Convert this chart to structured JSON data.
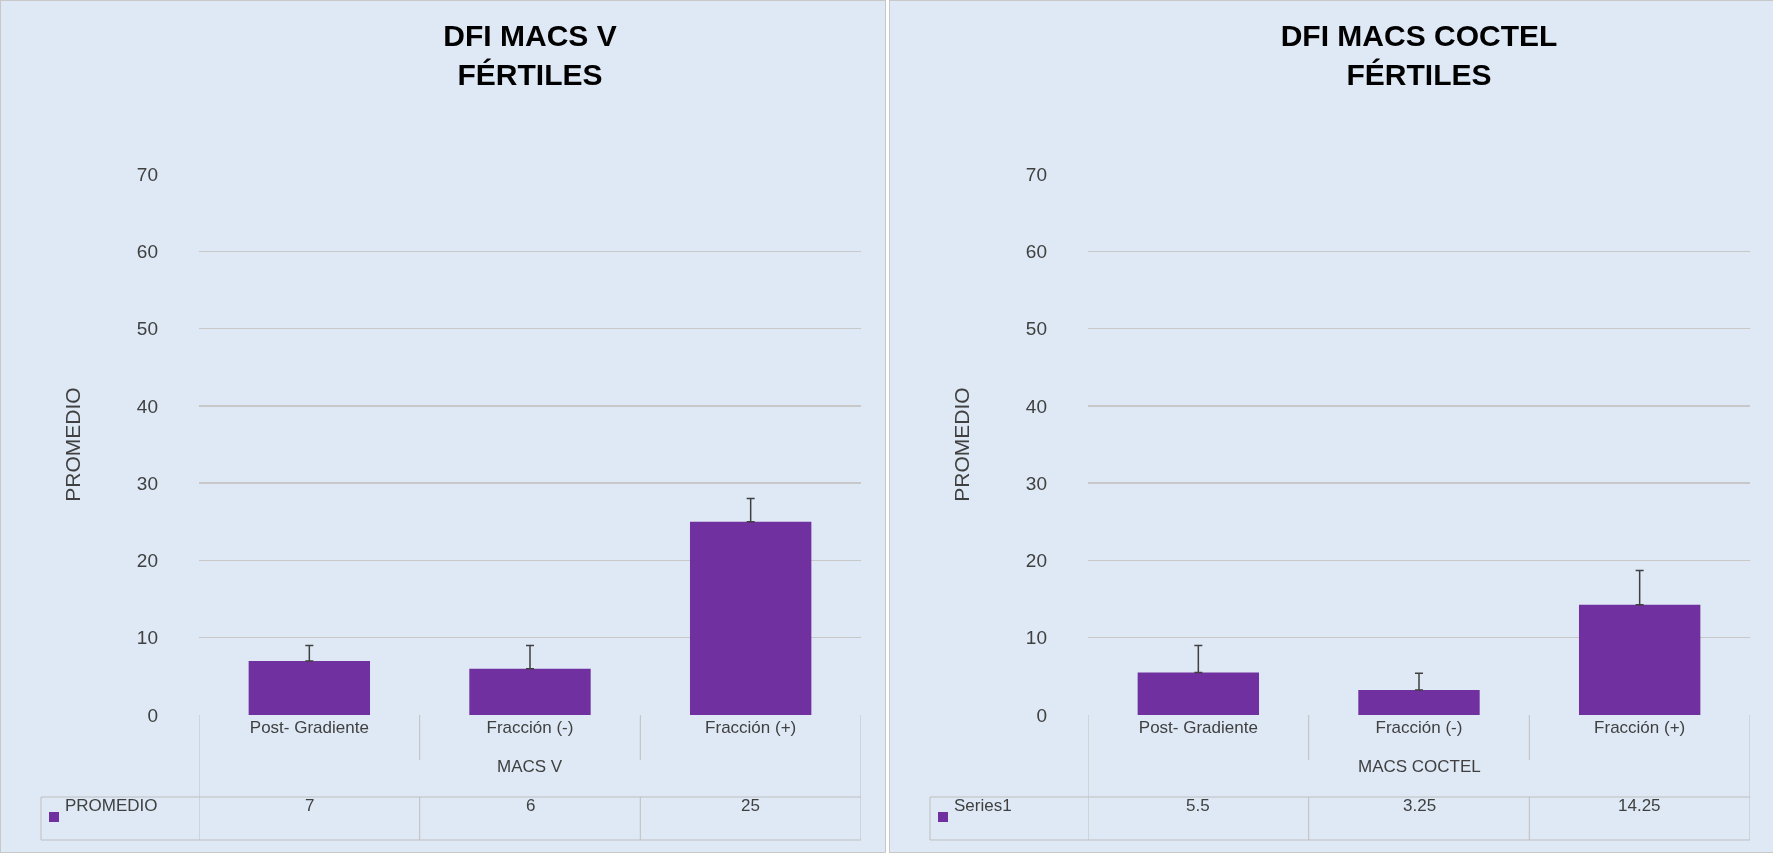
{
  "chart_data": [
    {
      "type": "bar",
      "title": "DFI MACS V\nFÉRTILES",
      "ylabel": "PROMEDIO",
      "xlabel": "MACS V",
      "categories": [
        "Post- Gradiente",
        "Fracción (-)",
        "Fracción (+)"
      ],
      "series": [
        {
          "name": "PROMEDIO",
          "color": "#7030a0",
          "values": [
            7,
            6,
            25
          ],
          "errors": [
            [
              7,
              9
            ],
            [
              6,
              9
            ],
            [
              25,
              28
            ]
          ]
        }
      ],
      "ylim": [
        0,
        70
      ],
      "yticks": [
        0,
        10,
        20,
        30,
        40,
        50,
        60,
        70
      ],
      "grid": "y",
      "legend": "bottom",
      "data_labels": true
    },
    {
      "type": "bar",
      "title": "DFI MACS COCTEL\nFÉRTILES",
      "ylabel": "PROMEDIO",
      "xlabel": "MACS COCTEL",
      "categories": [
        "Post- Gradiente",
        "Fracción (-)",
        "Fracción (+)"
      ],
      "series": [
        {
          "name": "Series1",
          "color": "#7030a0",
          "values": [
            5.5,
            3.25,
            14.25
          ],
          "errors": [
            [
              5.5,
              9
            ],
            [
              3.25,
              5.4
            ],
            [
              14.25,
              18.7
            ]
          ]
        }
      ],
      "ylim": [
        0,
        70
      ],
      "yticks": [
        0,
        10,
        20,
        30,
        40,
        50,
        60,
        70
      ],
      "grid": "y",
      "legend": "bottom",
      "data_labels": true
    }
  ]
}
